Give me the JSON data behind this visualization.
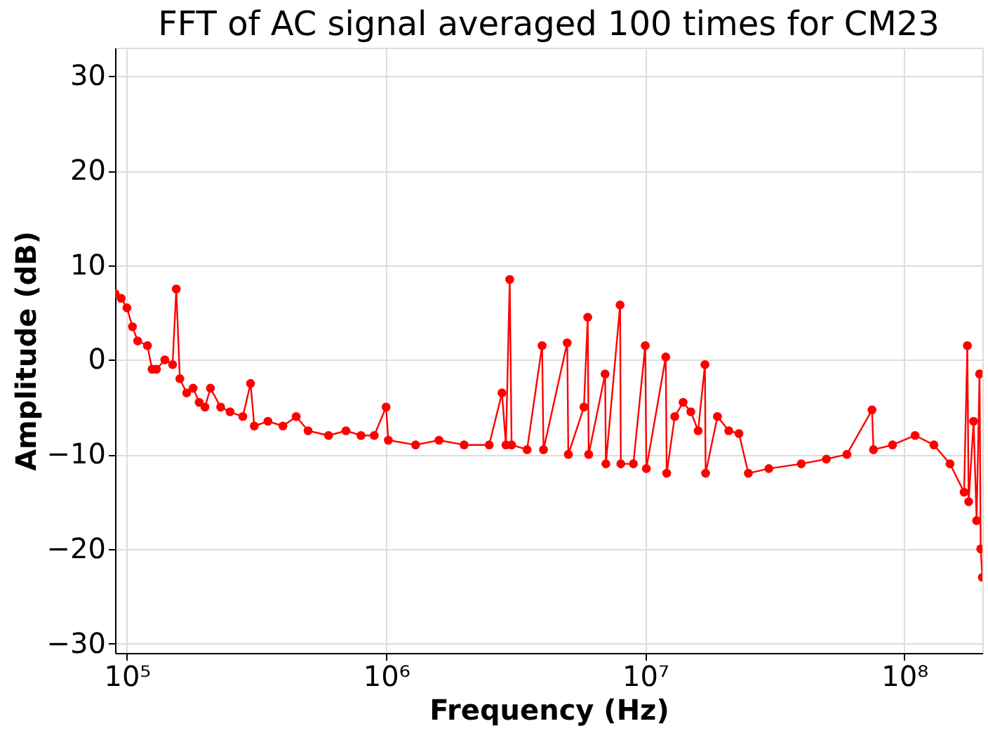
{
  "chart_data": {
    "type": "line",
    "title": "FFT of AC signal averaged 100 times for CM23",
    "xlabel": "Frequency (Hz)",
    "ylabel": "Amplitude (dB)",
    "log": "x",
    "grid": true,
    "marker": "circle",
    "line_style": "solid",
    "xlim": [
      90000,
      200000000
    ],
    "ylim": [
      -31,
      33
    ],
    "xticks": [
      {
        "value": 100000,
        "label": "10⁵"
      },
      {
        "value": 1000000,
        "label": "10⁶"
      },
      {
        "value": 10000000,
        "label": "10⁷"
      },
      {
        "value": 100000000,
        "label": "10⁸"
      }
    ],
    "yticks": [
      -30,
      -20,
      -10,
      0,
      10,
      20,
      30
    ],
    "series": [
      {
        "color": "#ff0000",
        "x": [
          90000,
          95000,
          100000,
          105000,
          110000,
          120000,
          125000,
          130000,
          140000,
          150000,
          155000,
          160000,
          170000,
          180000,
          190000,
          200000,
          210000,
          230000,
          250000,
          280000,
          300000,
          310000,
          350000,
          400000,
          450000,
          500000,
          600000,
          700000,
          800000,
          900000,
          1000000,
          1020000,
          1300000,
          1600000,
          2000000,
          2500000,
          2800000,
          2900000,
          3000000,
          3050000,
          3500000,
          4000000,
          4050000,
          5000000,
          5050000,
          5800000,
          6000000,
          6050000,
          7000000,
          7050000,
          8000000,
          8050000,
          9000000,
          10000000,
          10100000,
          12000000,
          12100000,
          13000000,
          14000000,
          15000000,
          16000000,
          17000000,
          17100000,
          19000000,
          21000000,
          23000000,
          25000000,
          30000000,
          40000000,
          50000000,
          60000000,
          75000000,
          76000000,
          90000000,
          110000000,
          130000000,
          150000000,
          170000000,
          175000000,
          177000000,
          185000000,
          190000000,
          195000000,
          197000000,
          200000000
        ],
        "values": [
          7,
          6.5,
          5.5,
          3.5,
          2,
          1.5,
          -1,
          -1,
          0,
          -0.5,
          7.5,
          -2,
          -3.5,
          -3,
          -4.5,
          -5,
          -3,
          -5,
          -5.5,
          -6,
          -2.5,
          -7,
          -6.5,
          -7,
          -6,
          -7.5,
          -8,
          -7.5,
          -8,
          -8,
          -5,
          -8.5,
          -9,
          -8.5,
          -9,
          -9,
          -3.5,
          -9,
          8.5,
          -9,
          -9.5,
          1.5,
          -9.5,
          1.8,
          -10,
          -5,
          4.5,
          -10,
          -1.5,
          -11,
          5.8,
          -11,
          -11,
          1.5,
          -11.5,
          0.3,
          -12,
          -6,
          -4.5,
          -5.5,
          -7.5,
          -0.5,
          -12,
          -6,
          -7.5,
          -7.8,
          -12,
          -11.5,
          -11,
          -10.5,
          -10,
          -5.3,
          -9.5,
          -9,
          -8,
          -9,
          -11,
          -14,
          1.5,
          -15,
          -6.5,
          -17,
          -1.5,
          -20,
          -23
        ]
      }
    ]
  }
}
